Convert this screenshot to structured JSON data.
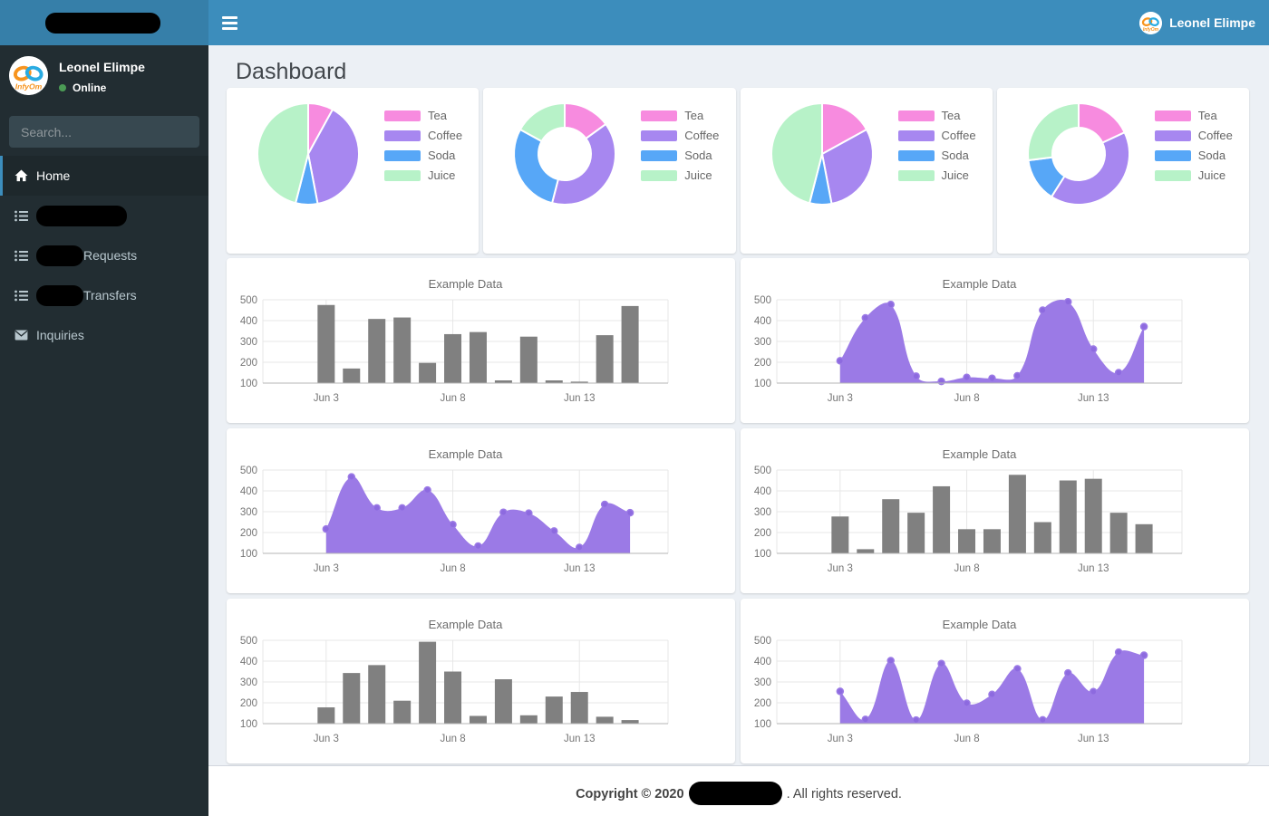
{
  "header": {
    "user": {
      "name": "Leonel Elimpe"
    }
  },
  "sidebar": {
    "logo_redacted": true,
    "user": {
      "name": "Leonel Elimpe",
      "status": "Online"
    },
    "search": {
      "placeholder": "Search..."
    },
    "menu": [
      {
        "label": "Home",
        "icon": "home-icon",
        "active": true,
        "redacted": "none"
      },
      {
        "label": "",
        "icon": "list-icon",
        "active": false,
        "redacted": "full"
      },
      {
        "label": "Requests",
        "icon": "list-icon",
        "active": false,
        "redacted": "prefix"
      },
      {
        "label": "Transfers",
        "icon": "list-icon",
        "active": false,
        "redacted": "prefix"
      },
      {
        "label": "Inquiries",
        "icon": "envelope-icon",
        "active": false,
        "redacted": "none"
      }
    ]
  },
  "page": {
    "title": "Dashboard"
  },
  "footer": {
    "prefix": "Copyright © 2020",
    "company_redacted": true,
    "suffix": ". All rights reserved."
  },
  "colors": {
    "navbar": "#3c8dbc",
    "logo_bg": "#367fa9",
    "sidebar": "#222d32",
    "sidebar_active_bg": "#1e282c",
    "accent": "#3c8dbc",
    "content_bg": "#ecf0f5",
    "menu_text": "#b8c7ce",
    "online_dot": "#4b9b55",
    "tea": "#F78BDF",
    "coffee": "#A787F0",
    "soda": "#57A7F7",
    "juice": "#B7F2C8",
    "bar": "#808080",
    "area_fill": "#9B7AE6",
    "area_point": "#8D6ADF"
  },
  "chart_data": [
    {
      "type": "pie",
      "labels": [
        "Tea",
        "Coffee",
        "Soda",
        "Juice"
      ],
      "values": [
        8,
        39,
        7,
        46
      ],
      "colors": [
        "#F78BDF",
        "#A787F0",
        "#57A7F7",
        "#B7F2C8"
      ],
      "legend_position": "right"
    },
    {
      "type": "doughnut",
      "labels": [
        "Tea",
        "Coffee",
        "Soda",
        "Juice"
      ],
      "values": [
        15,
        39,
        29,
        17
      ],
      "colors": [
        "#F78BDF",
        "#A787F0",
        "#57A7F7",
        "#B7F2C8"
      ],
      "legend_position": "right"
    },
    {
      "type": "pie",
      "labels": [
        "Tea",
        "Coffee",
        "Soda",
        "Juice"
      ],
      "values": [
        17,
        30,
        7,
        46
      ],
      "colors": [
        "#F78BDF",
        "#A787F0",
        "#57A7F7",
        "#B7F2C8"
      ],
      "legend_position": "right"
    },
    {
      "type": "doughnut",
      "labels": [
        "Tea",
        "Coffee",
        "Soda",
        "Juice"
      ],
      "values": [
        18,
        41,
        14,
        27
      ],
      "colors": [
        "#F78BDF",
        "#A787F0",
        "#57A7F7",
        "#B7F2C8"
      ],
      "legend_position": "right"
    },
    {
      "type": "bar",
      "title": "Example Data",
      "values": [
        475,
        170,
        408,
        415,
        197,
        335,
        345,
        113,
        323,
        113,
        107,
        330,
        470
      ],
      "x_ticks": [
        "Jun 3",
        "Jun 8",
        "Jun 13"
      ],
      "tick_indices": [
        0,
        5,
        10
      ],
      "y_ticks": [
        100,
        200,
        300,
        400,
        500
      ],
      "ylim": [
        100,
        500
      ],
      "grid": true,
      "color": "#808080"
    },
    {
      "type": "area",
      "title": "Example Data",
      "values": [
        207,
        413,
        477,
        133,
        108,
        127,
        123,
        135,
        450,
        490,
        263,
        150,
        371
      ],
      "x_ticks": [
        "Jun 3",
        "Jun 8",
        "Jun 13"
      ],
      "tick_indices": [
        0,
        5,
        10
      ],
      "y_ticks": [
        100,
        200,
        300,
        400,
        500
      ],
      "ylim": [
        100,
        500
      ],
      "grid": true,
      "color": "#9B7AE6",
      "point_color": "#8D6ADF"
    },
    {
      "type": "area",
      "title": "Example Data",
      "values": [
        217,
        467,
        318,
        318,
        404,
        238,
        135,
        297,
        293,
        207,
        128,
        335,
        295
      ],
      "x_ticks": [
        "Jun 3",
        "Jun 8",
        "Jun 13"
      ],
      "tick_indices": [
        0,
        5,
        10
      ],
      "y_ticks": [
        100,
        200,
        300,
        400,
        500
      ],
      "ylim": [
        100,
        500
      ],
      "grid": true,
      "color": "#9B7AE6",
      "point_color": "#8D6ADF"
    },
    {
      "type": "bar",
      "title": "Example Data",
      "values": [
        277,
        120,
        360,
        295,
        422,
        216,
        216,
        477,
        250,
        450,
        458,
        295,
        240
      ],
      "x_ticks": [
        "Jun 3",
        "Jun 8",
        "Jun 13"
      ],
      "tick_indices": [
        0,
        5,
        10
      ],
      "y_ticks": [
        100,
        200,
        300,
        400,
        500
      ],
      "ylim": [
        100,
        500
      ],
      "grid": true,
      "color": "#808080"
    },
    {
      "type": "bar",
      "title": "Example Data",
      "values": [
        178,
        343,
        381,
        210,
        493,
        350,
        137,
        313,
        140,
        230,
        252,
        133,
        117
      ],
      "x_ticks": [
        "Jun 3",
        "Jun 8",
        "Jun 13"
      ],
      "tick_indices": [
        0,
        5,
        10
      ],
      "y_ticks": [
        100,
        200,
        300,
        400,
        500
      ],
      "ylim": [
        100,
        500
      ],
      "grid": true,
      "color": "#808080"
    },
    {
      "type": "area",
      "title": "Example Data",
      "values": [
        255,
        120,
        402,
        117,
        388,
        198,
        240,
        363,
        118,
        343,
        253,
        443,
        428
      ],
      "x_ticks": [
        "Jun 3",
        "Jun 8",
        "Jun 13"
      ],
      "tick_indices": [
        0,
        5,
        10
      ],
      "y_ticks": [
        100,
        200,
        300,
        400,
        500
      ],
      "ylim": [
        100,
        500
      ],
      "grid": true,
      "color": "#9B7AE6",
      "point_color": "#8D6ADF"
    }
  ]
}
